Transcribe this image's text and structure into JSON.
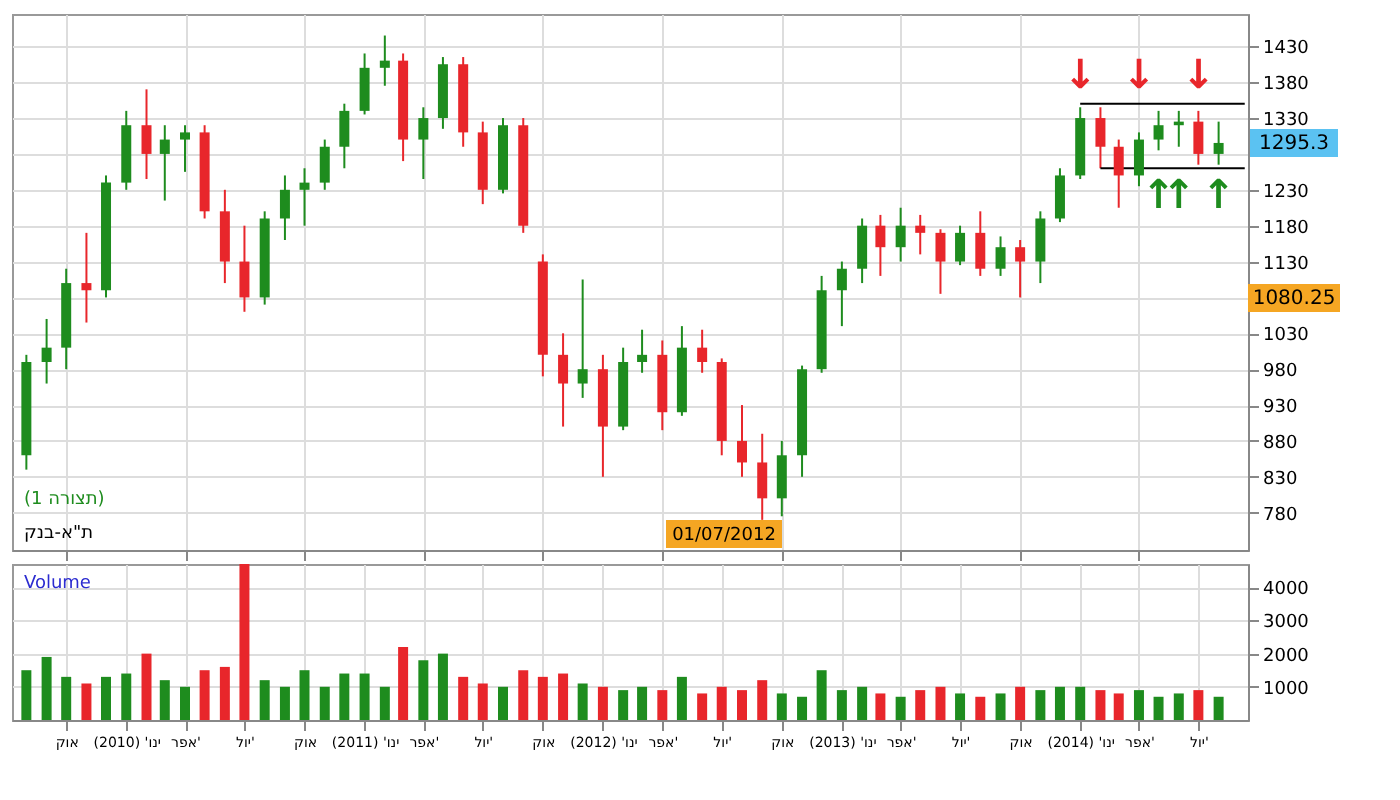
{
  "chart_data": [
    {
      "type": "candlestick",
      "colors": [
        "#1e8c1e",
        "#1e8c1e",
        "#1e8c1e",
        "#e8262b",
        "#1e8c1e",
        "#1e8c1e",
        "#e8262b",
        "#1e8c1e",
        "#1e8c1e",
        "#e8262b",
        "#e8262b",
        "#e8262b",
        "#1e8c1e",
        "#1e8c1e",
        "#1e8c1e",
        "#1e8c1e",
        "#1e8c1e",
        "#1e8c1e",
        "#1e8c1e",
        "#e8262b",
        "#1e8c1e",
        "#1e8c1e",
        "#e8262b",
        "#e8262b",
        "#1e8c1e",
        "#e8262b",
        "#e8262b",
        "#e8262b",
        "#1e8c1e",
        "#e8262b",
        "#1e8c1e",
        "#1e8c1e",
        "#e8262b",
        "#1e8c1e",
        "#e8262b",
        "#e8262b",
        "#e8262b",
        "#e8262b",
        "#1e8c1e",
        "#1e8c1e",
        "#1e8c1e",
        "#1e8c1e",
        "#1e8c1e",
        "#e8262b",
        "#1e8c1e",
        "#e8262b",
        "#e8262b",
        "#1e8c1e",
        "#e8262b",
        "#1e8c1e",
        "#e8262b",
        "#1e8c1e",
        "#1e8c1e",
        "#1e8c1e",
        "#e8262b",
        "#e8262b",
        "#1e8c1e",
        "#1e8c1e",
        "#1e8c1e",
        "#e8262b",
        "#1e8c1e"
      ],
      "x": [
        "2009-08",
        "2009-09",
        "2009-10",
        "2009-11",
        "2009-12",
        "2010-01",
        "2010-02",
        "2010-03",
        "2010-04",
        "2010-05",
        "2010-06",
        "2010-07",
        "2010-08",
        "2010-09",
        "2010-10",
        "2010-11",
        "2010-12",
        "2011-01",
        "2011-02",
        "2011-03",
        "2011-04",
        "2011-05",
        "2011-06",
        "2011-07",
        "2011-08",
        "2011-09",
        "2011-10",
        "2011-11",
        "2011-12",
        "2012-01",
        "2012-02",
        "2012-03",
        "2012-04",
        "2012-05",
        "2012-06",
        "2012-07",
        "2012-08",
        "2012-09",
        "2012-10",
        "2012-11",
        "2012-12",
        "2013-01",
        "2013-02",
        "2013-03",
        "2013-04",
        "2013-05",
        "2013-06",
        "2013-07",
        "2013-08",
        "2013-09",
        "2013-10",
        "2013-11",
        "2013-12",
        "2014-01",
        "2014-02",
        "2014-03",
        "2014-04",
        "2014-05",
        "2014-06",
        "2014-07",
        "2014-08"
      ],
      "ohlc": [
        [
          860,
          1000,
          840,
          990
        ],
        [
          990,
          1050,
          960,
          1010
        ],
        [
          1010,
          1120,
          980,
          1100
        ],
        [
          1100,
          1170,
          1045,
          1090
        ],
        [
          1090,
          1250,
          1080,
          1240
        ],
        [
          1240,
          1340,
          1230,
          1320
        ],
        [
          1320,
          1370,
          1245,
          1280
        ],
        [
          1280,
          1320,
          1215,
          1300
        ],
        [
          1300,
          1320,
          1255,
          1310
        ],
        [
          1310,
          1320,
          1190,
          1200
        ],
        [
          1200,
          1230,
          1100,
          1130
        ],
        [
          1130,
          1180,
          1060,
          1080
        ],
        [
          1080,
          1200,
          1070,
          1190
        ],
        [
          1190,
          1250,
          1160,
          1230
        ],
        [
          1230,
          1260,
          1180,
          1240
        ],
        [
          1240,
          1300,
          1230,
          1290
        ],
        [
          1290,
          1350,
          1260,
          1340
        ],
        [
          1340,
          1420,
          1335,
          1400
        ],
        [
          1400,
          1445,
          1375,
          1410
        ],
        [
          1410,
          1420,
          1270,
          1300
        ],
        [
          1300,
          1345,
          1245,
          1330
        ],
        [
          1330,
          1415,
          1315,
          1405
        ],
        [
          1405,
          1415,
          1290,
          1310
        ],
        [
          1310,
          1325,
          1210,
          1230
        ],
        [
          1230,
          1330,
          1225,
          1320
        ],
        [
          1320,
          1330,
          1170,
          1180
        ],
        [
          1130,
          1140,
          970,
          1000
        ],
        [
          1000,
          1030,
          900,
          960
        ],
        [
          960,
          1105,
          940,
          980
        ],
        [
          980,
          1000,
          830,
          900
        ],
        [
          900,
          1010,
          895,
          990
        ],
        [
          990,
          1035,
          975,
          1000
        ],
        [
          1000,
          1020,
          895,
          920
        ],
        [
          920,
          1040,
          915,
          1010
        ],
        [
          1010,
          1035,
          975,
          990
        ],
        [
          990,
          995,
          860,
          880
        ],
        [
          880,
          930,
          830,
          850
        ],
        [
          850,
          890,
          770,
          800
        ],
        [
          800,
          880,
          775,
          860
        ],
        [
          860,
          985,
          830,
          980
        ],
        [
          980,
          1110,
          975,
          1090
        ],
        [
          1090,
          1130,
          1040,
          1120
        ],
        [
          1120,
          1190,
          1100,
          1180
        ],
        [
          1180,
          1195,
          1110,
          1150
        ],
        [
          1150,
          1205,
          1130,
          1180
        ],
        [
          1180,
          1195,
          1140,
          1170
        ],
        [
          1170,
          1175,
          1085,
          1130
        ],
        [
          1130,
          1180,
          1125,
          1170
        ],
        [
          1170,
          1200,
          1110,
          1120
        ],
        [
          1120,
          1165,
          1110,
          1150
        ],
        [
          1150,
          1160,
          1080,
          1130
        ],
        [
          1130,
          1200,
          1100,
          1190
        ],
        [
          1190,
          1260,
          1185,
          1250
        ],
        [
          1250,
          1345,
          1245,
          1330
        ],
        [
          1330,
          1345,
          1260,
          1290
        ],
        [
          1290,
          1300,
          1205,
          1250
        ],
        [
          1250,
          1310,
          1235,
          1300
        ],
        [
          1300,
          1340,
          1285,
          1320
        ],
        [
          1320,
          1340,
          1290,
          1325
        ],
        [
          1325,
          1340,
          1265,
          1280
        ],
        [
          1280,
          1325,
          1265,
          1295.3
        ]
      ],
      "series": [
        {
          "type": "line",
          "color": "#000000",
          "x": [
            "2014-01",
            "2014-09-10"
          ],
          "values": [
            1350,
            1350
          ]
        },
        {
          "type": "line",
          "color": "#000000",
          "x": [
            "2014-02",
            "2014-09-10"
          ],
          "values": [
            1260,
            1260
          ]
        }
      ],
      "xlim": [
        "2009-07-10",
        "2014-09-15"
      ],
      "xticks": [
        {
          "value": "2009-10",
          "label": null
        },
        {
          "value": "2010-01",
          "label": null
        },
        {
          "value": "2010-04",
          "label": null
        },
        {
          "value": "2010-07",
          "label": null
        },
        {
          "value": "2010-10",
          "label": null
        },
        {
          "value": "2011-01",
          "label": null
        },
        {
          "value": "2011-04",
          "label": null
        },
        {
          "value": "2011-07",
          "label": null
        },
        {
          "value": "2011-10",
          "label": null
        },
        {
          "value": "2012-01",
          "label": null
        },
        {
          "value": "2012-04",
          "label": null
        },
        {
          "value": "2012-07",
          "label": null
        },
        {
          "value": "2012-10",
          "label": null
        },
        {
          "value": "2013-01",
          "label": null
        },
        {
          "value": "2013-04",
          "label": null
        },
        {
          "value": "2013-07",
          "label": null
        },
        {
          "value": "2013-10",
          "label": null
        },
        {
          "value": "2014-01",
          "label": null
        },
        {
          "value": "2014-04",
          "label": null
        },
        {
          "value": "2014-07",
          "label": null
        }
      ],
      "ylim": [
        728,
        1475
      ],
      "yticks": [
        780,
        830,
        880,
        930,
        980,
        1030,
        {
          "value": 1080,
          "label": null
        },
        1130,
        1180,
        1230,
        {
          "value": 1280,
          "label": null
        },
        1330,
        1380,
        1430
      ],
      "grid": true,
      "tick_labels": "y",
      "annotations": [
        {
          "text": "1295.3",
          "x": "2014-08",
          "y": 1295.3
        },
        "1080.25",
        "01/07/2012",
        {
          "text": "↓",
          "x": "2014-01",
          "y": 1350
        },
        {
          "text": "↓",
          "x": "2014-04",
          "y": 1350
        },
        {
          "text": "↓",
          "x": "2014-07",
          "y": 1350
        },
        {
          "text": "↑",
          "x": "2014-05",
          "y": 1260
        },
        {
          "text": "↑",
          "x": "2014-06",
          "y": 1260
        },
        {
          "text": "↑",
          "x": "2014-08",
          "y": 1260
        },
        "(תצורה 1)",
        "ת\"א-בנק"
      ]
    },
    {
      "type": "bar",
      "x": [
        "2009-08",
        "2009-09",
        "2009-10",
        "2009-11",
        "2009-12",
        "2010-01",
        "2010-02",
        "2010-03",
        "2010-04",
        "2010-05",
        "2010-06",
        "2010-07",
        "2010-08",
        "2010-09",
        "2010-10",
        "2010-11",
        "2010-12",
        "2011-01",
        "2011-02",
        "2011-03",
        "2011-04",
        "2011-05",
        "2011-06",
        "2011-07",
        "2011-08",
        "2011-09",
        "2011-10",
        "2011-11",
        "2011-12",
        "2012-01",
        "2012-02",
        "2012-03",
        "2012-04",
        "2012-05",
        "2012-06",
        "2012-07",
        "2012-08",
        "2012-09",
        "2012-10",
        "2012-11",
        "2012-12",
        "2013-01",
        "2013-02",
        "2013-03",
        "2013-04",
        "2013-05",
        "2013-06",
        "2013-07",
        "2013-08",
        "2013-09",
        "2013-10",
        "2013-11",
        "2013-12",
        "2014-01",
        "2014-02",
        "2014-03",
        "2014-04",
        "2014-05",
        "2014-06",
        "2014-07",
        "2014-08"
      ],
      "values": [
        1500,
        1900,
        1300,
        1100,
        1300,
        1400,
        2000,
        1200,
        1000,
        1500,
        1600,
        4700,
        1200,
        1000,
        1500,
        1000,
        1400,
        1400,
        1000,
        2200,
        1800,
        2000,
        1300,
        1100,
        1000,
        1500,
        1300,
        1400,
        1100,
        1000,
        900,
        1000,
        900,
        1300,
        800,
        1000,
        900,
        1200,
        800,
        700,
        1500,
        900,
        1000,
        800,
        700,
        900,
        1000,
        800,
        700,
        800,
        1000,
        900,
        1000,
        1000,
        900,
        800,
        900,
        700,
        800,
        900,
        700
      ],
      "colors": [
        "#1e8c1e",
        "#1e8c1e",
        "#1e8c1e",
        "#e8262b",
        "#1e8c1e",
        "#1e8c1e",
        "#e8262b",
        "#1e8c1e",
        "#1e8c1e",
        "#e8262b",
        "#e8262b",
        "#e8262b",
        "#1e8c1e",
        "#1e8c1e",
        "#1e8c1e",
        "#1e8c1e",
        "#1e8c1e",
        "#1e8c1e",
        "#1e8c1e",
        "#e8262b",
        "#1e8c1e",
        "#1e8c1e",
        "#e8262b",
        "#e8262b",
        "#1e8c1e",
        "#e8262b",
        "#e8262b",
        "#e8262b",
        "#1e8c1e",
        "#e8262b",
        "#1e8c1e",
        "#1e8c1e",
        "#e8262b",
        "#1e8c1e",
        "#e8262b",
        "#e8262b",
        "#e8262b",
        "#e8262b",
        "#1e8c1e",
        "#1e8c1e",
        "#1e8c1e",
        "#1e8c1e",
        "#1e8c1e",
        "#e8262b",
        "#1e8c1e",
        "#e8262b",
        "#e8262b",
        "#1e8c1e",
        "#e8262b",
        "#1e8c1e",
        "#e8262b",
        "#1e8c1e",
        "#1e8c1e",
        "#1e8c1e",
        "#e8262b",
        "#e8262b",
        "#1e8c1e",
        "#1e8c1e",
        "#1e8c1e",
        "#e8262b",
        "#1e8c1e"
      ],
      "xlim": [
        "2009-07-10",
        "2014-09-15"
      ],
      "xticks": [
        {
          "value": "2009-10",
          "label": "אוק"
        },
        {
          "value": "2010-01",
          "label": "ינו' (2010)"
        },
        {
          "value": "2010-04",
          "label": "אפר'"
        },
        {
          "value": "2010-07",
          "label": "יול'"
        },
        {
          "value": "2010-10",
          "label": "אוק"
        },
        {
          "value": "2011-01",
          "label": "ינו' (2011)"
        },
        {
          "value": "2011-04",
          "label": "אפר'"
        },
        {
          "value": "2011-07",
          "label": "יול'"
        },
        {
          "value": "2011-10",
          "label": "אוק"
        },
        {
          "value": "2012-01",
          "label": "ינו' (2012)"
        },
        {
          "value": "2012-04",
          "label": "אפר'"
        },
        {
          "value": "2012-07",
          "label": "יול'"
        },
        {
          "value": "2012-10",
          "label": "אוק"
        },
        {
          "value": "2013-01",
          "label": "ינו' (2013)"
        },
        {
          "value": "2013-04",
          "label": "אפר'"
        },
        {
          "value": "2013-07",
          "label": "יול'"
        },
        {
          "value": "2013-10",
          "label": "אוק"
        },
        {
          "value": "2014-01",
          "label": "ינו' (2014)"
        },
        {
          "value": "2014-04",
          "label": "אפר'"
        },
        {
          "value": "2014-07",
          "label": "יול'"
        }
      ],
      "ylim": [
        0,
        4700
      ],
      "yticks": [
        1000,
        2000,
        3000,
        4000
      ],
      "grid": true,
      "annotations": [
        "Volume"
      ]
    }
  ]
}
